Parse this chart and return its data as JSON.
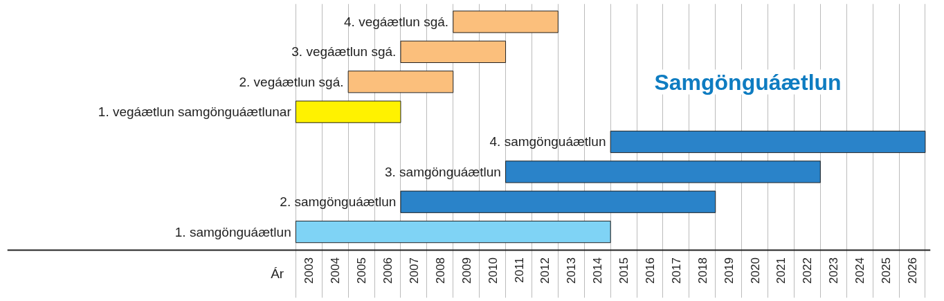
{
  "chart_data": {
    "type": "bar",
    "orientation": "horizontal",
    "title": "Samgönguáætlun",
    "xlabel": "Ár",
    "categories": [
      "4. vegáætlun sgá.",
      "3. vegáætlun sgá.",
      "2. vegáætlun sgá.",
      "1. vegáætlun samgönguáætlunar",
      "4. samgönguáætlun",
      "3. samgönguáætlun",
      "2. samgönguáætlun",
      "1. samgönguáætlun"
    ],
    "base": [
      2009,
      2007,
      2005,
      2003,
      2015,
      2011,
      2007,
      2003
    ],
    "values": [
      4,
      4,
      4,
      4,
      12,
      12,
      12,
      12
    ],
    "colors": [
      "#fbbf7c",
      "#fbbf7c",
      "#fbbf7c",
      "#fff200",
      "#2a83c9",
      "#2a83c9",
      "#2a83c9",
      "#7fd3f5"
    ],
    "xlim": [
      1992,
      2027.2
    ],
    "xticks": [
      {
        "value": 2003,
        "label": null
      },
      {
        "value": 2003.5,
        "label": "2003"
      },
      {
        "value": 2004,
        "label": null
      },
      {
        "value": 2004.5,
        "label": "2004"
      },
      {
        "value": 2005,
        "label": null
      },
      {
        "value": 2005.5,
        "label": "2005"
      },
      {
        "value": 2006,
        "label": null
      },
      {
        "value": 2006.5,
        "label": "2006"
      },
      {
        "value": 2007,
        "label": null
      },
      {
        "value": 2007.5,
        "label": "2007"
      },
      {
        "value": 2008,
        "label": null
      },
      {
        "value": 2008.5,
        "label": "2008"
      },
      {
        "value": 2009,
        "label": null
      },
      {
        "value": 2009.5,
        "label": "2009"
      },
      {
        "value": 2010,
        "label": null
      },
      {
        "value": 2010.5,
        "label": "2010"
      },
      {
        "value": 2011,
        "label": null
      },
      {
        "value": 2011.5,
        "label": "2011"
      },
      {
        "value": 2012,
        "label": null
      },
      {
        "value": 2012.5,
        "label": "2012"
      },
      {
        "value": 2013,
        "label": null
      },
      {
        "value": 2013.5,
        "label": "2013"
      },
      {
        "value": 2014,
        "label": null
      },
      {
        "value": 2014.5,
        "label": "2014"
      },
      {
        "value": 2015,
        "label": null
      },
      {
        "value": 2015.5,
        "label": "2015"
      },
      {
        "value": 2016,
        "label": null
      },
      {
        "value": 2016.5,
        "label": "2016"
      },
      {
        "value": 2017,
        "label": null
      },
      {
        "value": 2017.5,
        "label": "2017"
      },
      {
        "value": 2018,
        "label": null
      },
      {
        "value": 2018.5,
        "label": "2018"
      },
      {
        "value": 2019,
        "label": null
      },
      {
        "value": 2019.5,
        "label": "2019"
      },
      {
        "value": 2020,
        "label": null
      },
      {
        "value": 2020.5,
        "label": "2020"
      },
      {
        "value": 2021,
        "label": null
      },
      {
        "value": 2021.5,
        "label": "2021"
      },
      {
        "value": 2022,
        "label": null
      },
      {
        "value": 2022.5,
        "label": "2022"
      },
      {
        "value": 2023,
        "label": null
      },
      {
        "value": 2023.5,
        "label": "2023"
      },
      {
        "value": 2024,
        "label": null
      },
      {
        "value": 2024.5,
        "label": "2024"
      },
      {
        "value": 2025,
        "label": null
      },
      {
        "value": 2025.5,
        "label": "2025"
      },
      {
        "value": 2026,
        "label": null
      },
      {
        "value": 2026.5,
        "label": "2026"
      },
      {
        "value": 2027,
        "label": null
      }
    ],
    "grid": "x"
  }
}
